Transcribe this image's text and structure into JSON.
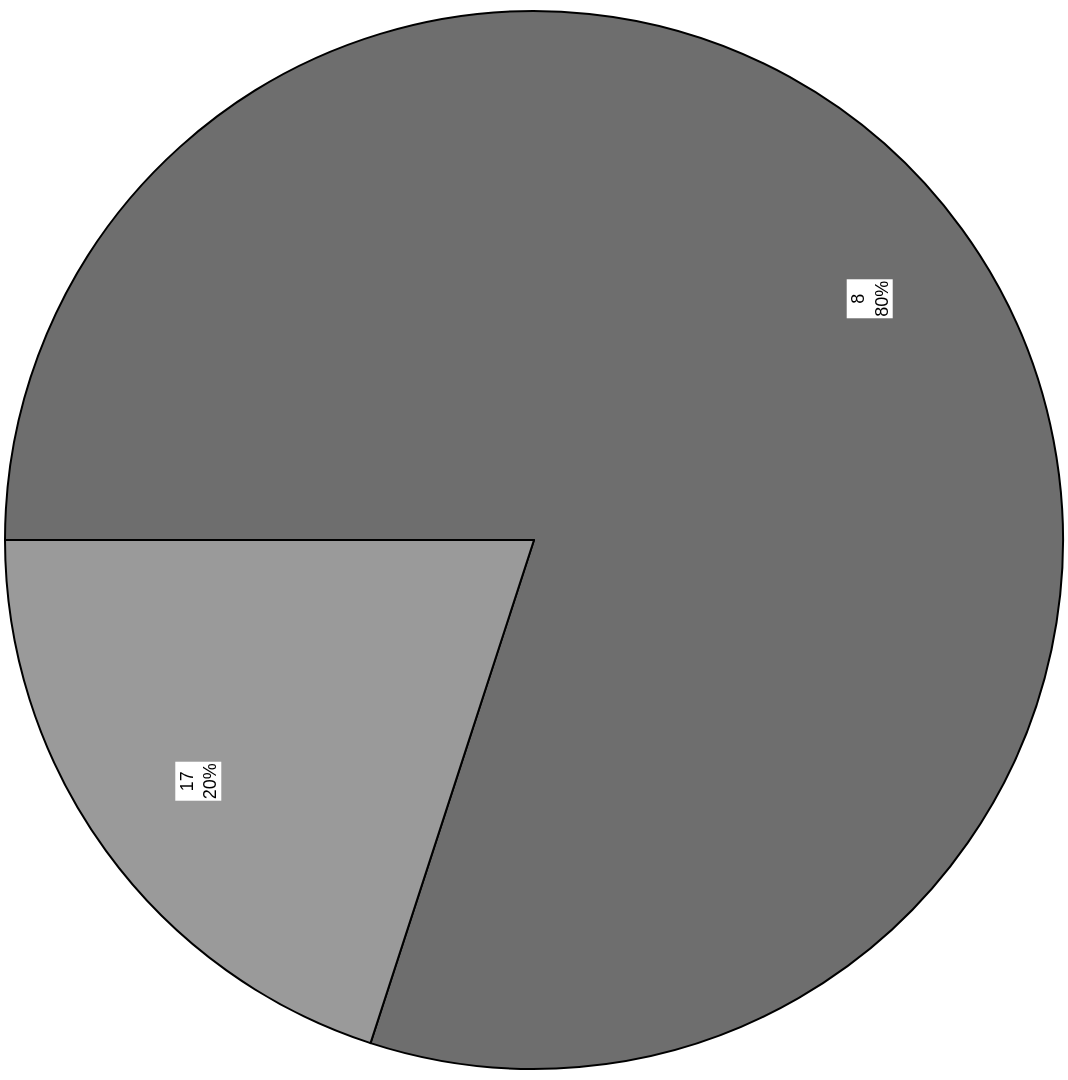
{
  "chart_data": {
    "type": "pie",
    "categories": [
      "8",
      "17"
    ],
    "values": [
      80,
      20
    ],
    "value_labels": [
      "80%",
      "20%"
    ],
    "colors": [
      "#6e6e6e",
      "#9a9a9a"
    ],
    "legend": false
  }
}
